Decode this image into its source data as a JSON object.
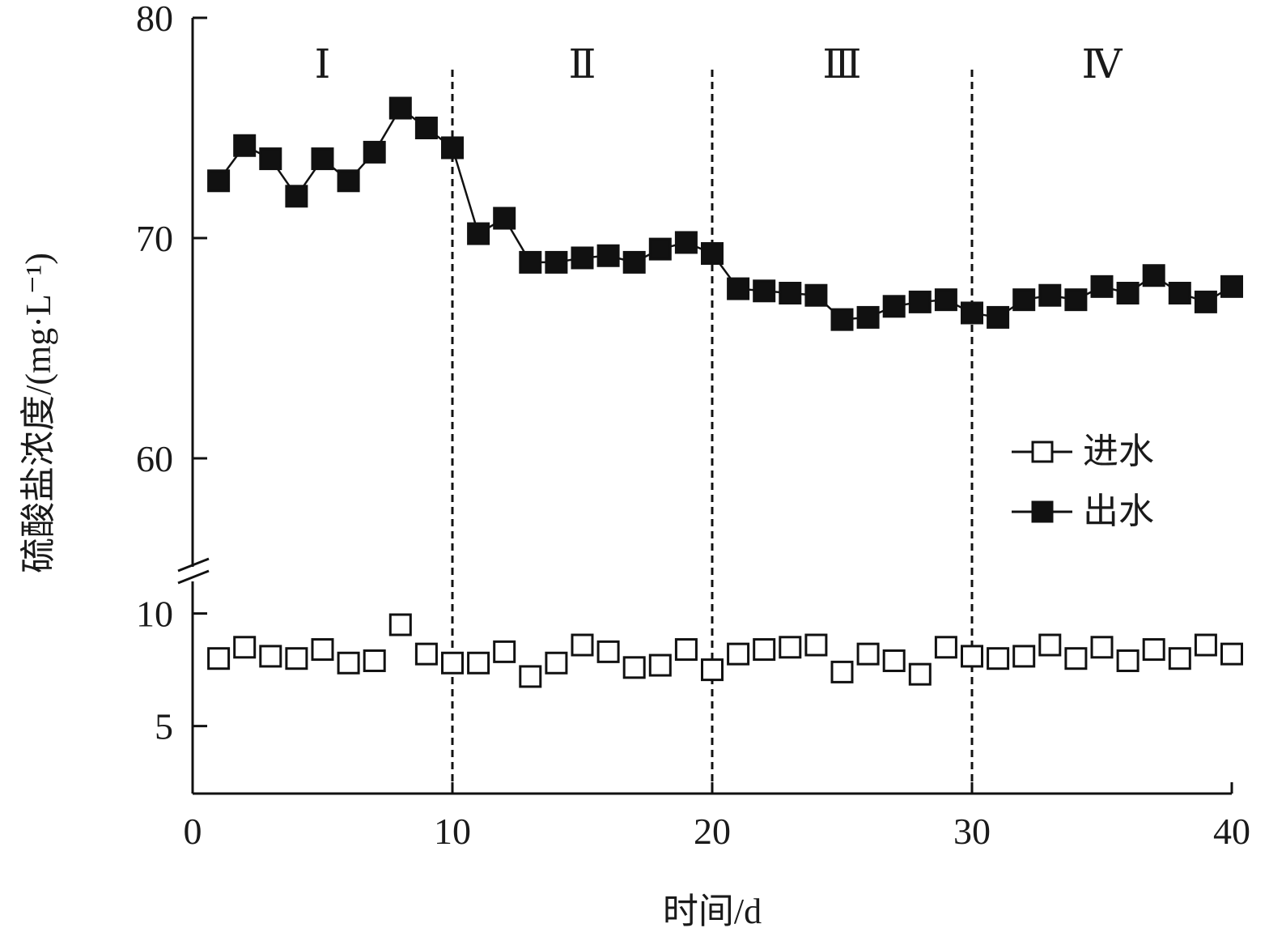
{
  "chart_data": {
    "type": "line",
    "xlabel": "时间/d",
    "ylabel": "硫酸盐浓度/(mg·L⁻¹)",
    "xlim": [
      0,
      40
    ],
    "x_ticks": [
      0,
      10,
      20,
      30,
      40
    ],
    "y_axis_break": true,
    "upper_ylim": [
      55,
      80
    ],
    "upper_y_ticks": [
      60,
      70,
      80
    ],
    "lower_ylim": [
      2,
      12
    ],
    "lower_y_ticks": [
      5,
      10
    ],
    "phases": [
      {
        "label": "Ⅰ",
        "start": 0,
        "end": 10
      },
      {
        "label": "Ⅱ",
        "start": 10,
        "end": 20
      },
      {
        "label": "Ⅲ",
        "start": 20,
        "end": 30
      },
      {
        "label": "Ⅳ",
        "start": 30,
        "end": 40
      }
    ],
    "phase_boundaries": [
      10,
      20,
      30
    ],
    "legend_position": "right",
    "x": [
      1,
      2,
      3,
      4,
      5,
      6,
      7,
      8,
      9,
      10,
      11,
      12,
      13,
      14,
      15,
      16,
      17,
      18,
      19,
      20,
      21,
      22,
      23,
      24,
      25,
      26,
      27,
      28,
      29,
      30,
      31,
      32,
      33,
      34,
      35,
      36,
      37,
      38,
      39,
      40
    ],
    "series": [
      {
        "name": "进水",
        "marker": "open-square",
        "connected": false,
        "values": [
          8.0,
          8.5,
          8.1,
          8.0,
          8.4,
          7.8,
          7.9,
          9.5,
          8.2,
          7.8,
          7.8,
          8.3,
          7.2,
          7.8,
          8.6,
          8.3,
          7.6,
          7.7,
          8.4,
          7.5,
          8.2,
          8.4,
          8.5,
          8.6,
          7.4,
          8.2,
          7.9,
          7.3,
          8.5,
          8.1,
          8.0,
          8.1,
          8.6,
          8.0,
          8.5,
          7.9,
          8.4,
          8.0,
          8.6,
          8.2
        ]
      },
      {
        "name": "出水",
        "marker": "filled-square",
        "connected": true,
        "values": [
          72.6,
          74.2,
          73.6,
          71.9,
          73.6,
          72.6,
          73.9,
          75.9,
          75.0,
          74.1,
          70.2,
          70.9,
          68.9,
          68.9,
          69.1,
          69.2,
          68.9,
          69.5,
          69.8,
          69.3,
          67.7,
          67.6,
          67.5,
          67.4,
          66.3,
          66.4,
          66.9,
          67.1,
          67.2,
          66.6,
          66.4,
          67.2,
          67.4,
          67.2,
          67.8,
          67.5,
          68.3,
          67.5,
          67.1,
          67.8
        ]
      }
    ]
  }
}
